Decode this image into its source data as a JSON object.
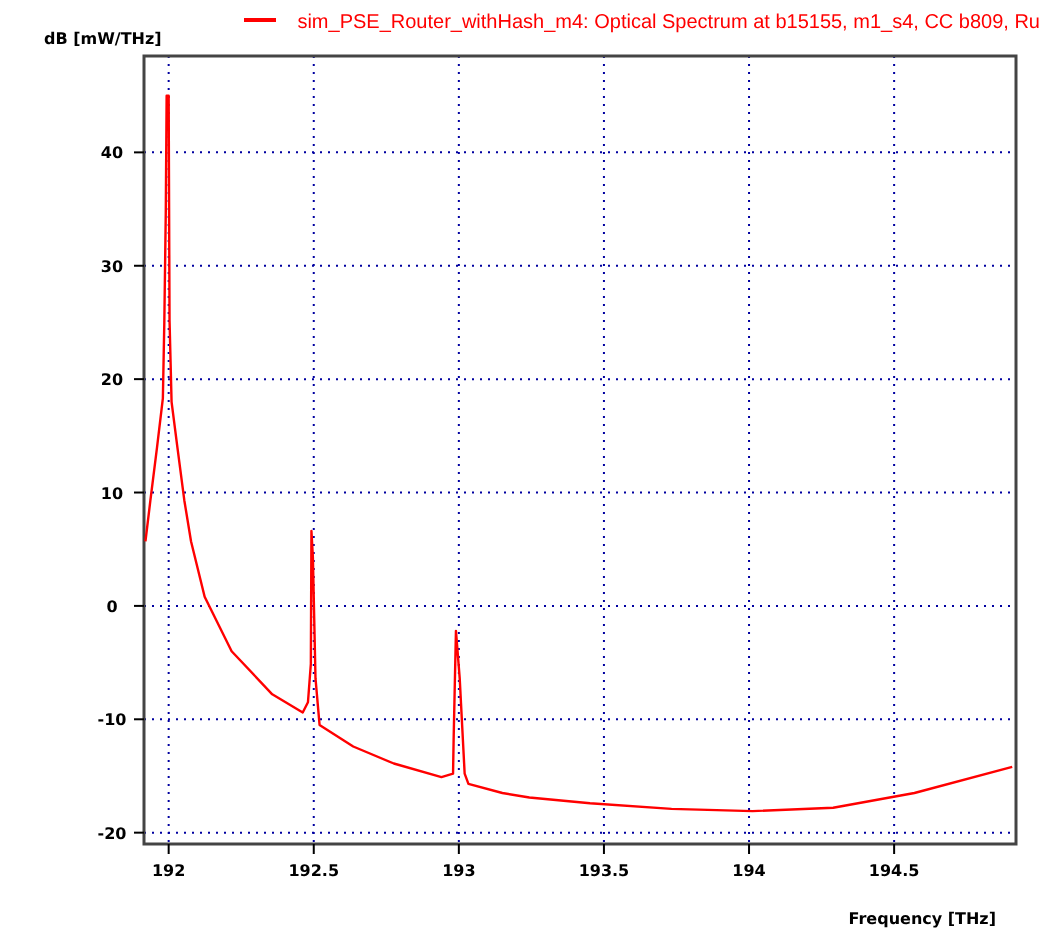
{
  "chart_data": {
    "type": "line",
    "ylabel": "dB [mW/THz]",
    "xlabel": "Frequency [THz]",
    "xlim": [
      191.915,
      194.92
    ],
    "xticks": [
      192,
      192.5,
      193,
      193.5,
      194,
      194.5
    ],
    "ylim": [
      -21,
      48.5
    ],
    "yticks": [
      40,
      30,
      20,
      10,
      0,
      -10,
      -20
    ],
    "grid": true,
    "legend": "top",
    "line_style": "solid",
    "marker": "none",
    "series": [
      {
        "name": "sim_PSE_Router_withHash_m4: Optical Spectrum at b15155, m1_s4, CC b809, Ru",
        "color": "#ff0000",
        "x": [
          191.92,
          191.937,
          191.96,
          191.98,
          191.985,
          191.99,
          191.993,
          192.0,
          192.003,
          192.01,
          192.03,
          192.054,
          192.077,
          192.124,
          192.217,
          192.357,
          192.462,
          192.48,
          192.49,
          192.492,
          192.497,
          192.506,
          192.52,
          192.636,
          192.776,
          192.94,
          192.98,
          192.982,
          192.99,
          193.003,
          193.02,
          193.033,
          193.15,
          193.243,
          193.452,
          193.733,
          194.012,
          194.29,
          194.57,
          194.907
        ],
        "values": [
          5.7,
          9.3,
          14,
          18.3,
          25,
          34.6,
          45,
          45,
          25.2,
          18,
          14,
          9.3,
          5.7,
          0.8,
          -4,
          -7.8,
          -9.4,
          -8.5,
          -5.1,
          6.6,
          4.3,
          -6.4,
          -10.5,
          -12.4,
          -13.9,
          -15.1,
          -14.8,
          -11.8,
          -2.2,
          -6.4,
          -14.8,
          -15.7,
          -16.5,
          -16.9,
          -17.4,
          -17.9,
          -18.1,
          -17.8,
          -16.5,
          -14.2
        ]
      }
    ]
  }
}
